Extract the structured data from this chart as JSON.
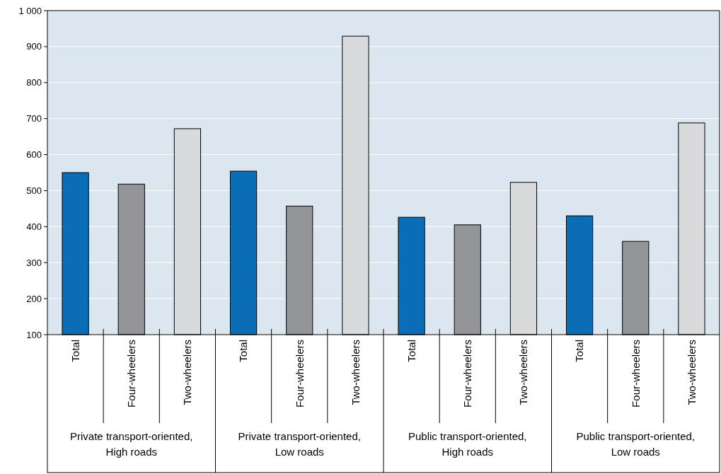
{
  "chart_data": {
    "type": "bar",
    "categories": [
      "Total",
      "Four-wheelers",
      "Two-wheelers",
      "Total",
      "Four-wheelers",
      "Two-wheelers",
      "Total",
      "Four-wheelers",
      "Two-wheelers",
      "Total",
      "Four-wheelers",
      "Two-wheelers"
    ],
    "values": [
      550,
      518,
      672,
      554,
      457,
      929,
      426,
      405,
      523,
      430,
      359,
      688
    ],
    "colors": [
      "#0a6db5",
      "#939598",
      "#d9dadb",
      "#0a6db5",
      "#939598",
      "#d9dadb",
      "#0a6db5",
      "#939598",
      "#d9dadb",
      "#0a6db5",
      "#939598",
      "#d9dadb"
    ],
    "annotations": [
      "Private transport-oriented, High roads",
      "Private transport-oriented, Low roads",
      "Public transport-oriented, High roads",
      "Public transport-oriented, Low roads"
    ],
    "ylim": [
      100,
      1000
    ],
    "yticks": [
      100,
      200,
      300,
      400,
      500,
      600,
      700,
      800,
      900,
      {
        "value": 1000,
        "label": "1 000"
      }
    ],
    "grid": "y"
  }
}
